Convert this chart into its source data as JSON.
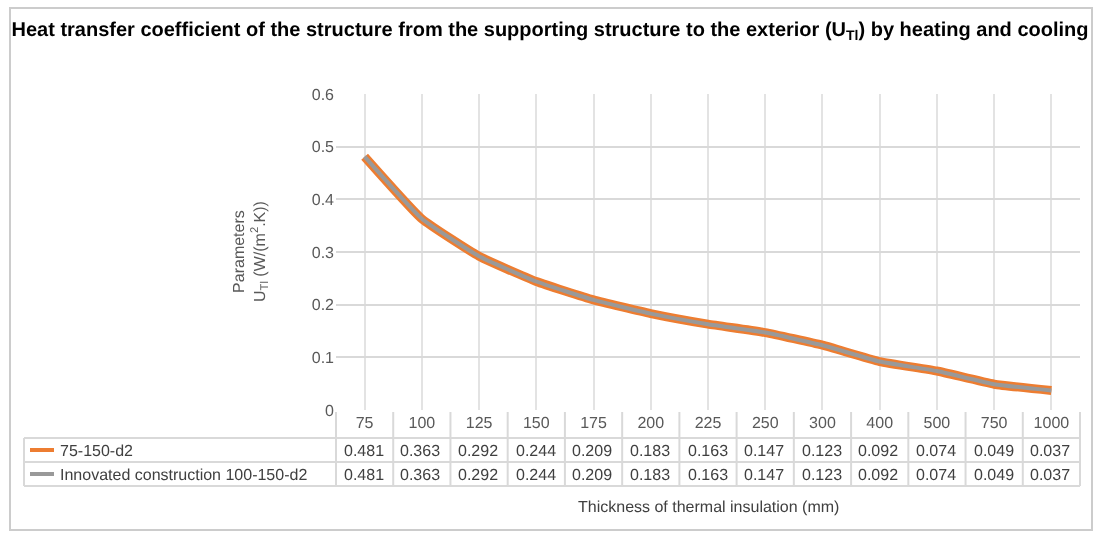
{
  "chart_data": {
    "type": "line",
    "title": "Heat transfer coefficient of the structure from the supporting structure to the exterior (U$_{Tl}$) by heating and cooling",
    "xlabel": "Thickness of thermal insulation (mm)",
    "ylabel": "Parameters\nU$_{Tl}$ (W/(m$^{2}$.K))",
    "categories": [
      "75",
      "100",
      "125",
      "150",
      "175",
      "200",
      "225",
      "250",
      "300",
      "400",
      "500",
      "750",
      "1000"
    ],
    "series": [
      {
        "name": "75-150-d2",
        "color": "#ed7d31",
        "values": [
          0.481,
          0.363,
          0.292,
          0.244,
          0.209,
          0.183,
          0.163,
          0.147,
          0.123,
          0.092,
          0.074,
          0.049,
          0.037
        ]
      },
      {
        "name": "Innovated construction 100-150-d2",
        "color": "#999999",
        "values": [
          0.481,
          0.363,
          0.292,
          0.244,
          0.209,
          0.183,
          0.163,
          0.147,
          0.123,
          0.092,
          0.074,
          0.049,
          0.037
        ]
      }
    ],
    "ylim": [
      0,
      0.6
    ],
    "yticks": [
      0,
      0.1,
      0.2,
      0.3,
      0.4,
      0.5,
      0.6
    ],
    "grid": true,
    "legend": "bottom",
    "data_labels": true,
    "marker": "none",
    "line_style": "solid"
  }
}
